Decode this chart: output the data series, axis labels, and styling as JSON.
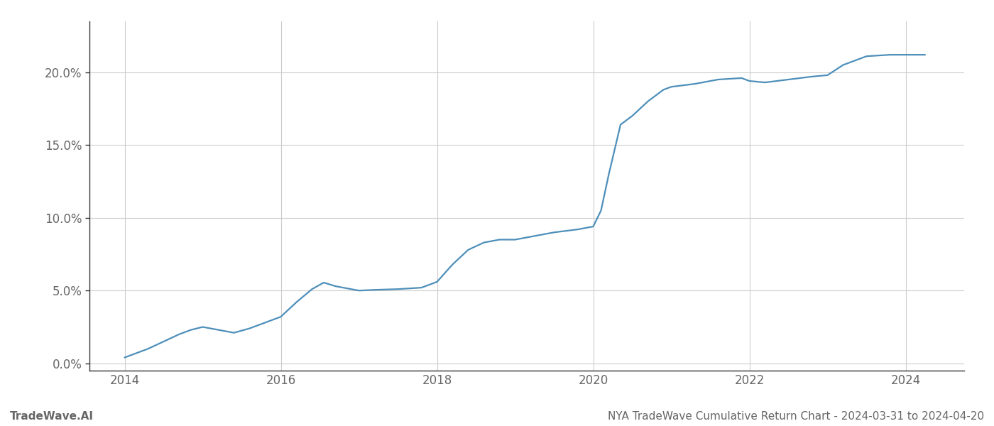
{
  "title": "",
  "footer_left": "TradeWave.AI",
  "footer_right": "NYA TradeWave Cumulative Return Chart - 2024-03-31 to 2024-04-20",
  "line_color": "#4d8fba",
  "background_color": "#ffffff",
  "grid_color": "#cccccc",
  "x_values": [
    2014.0,
    2014.15,
    2014.3,
    2014.5,
    2014.7,
    2014.85,
    2015.0,
    2015.2,
    2015.4,
    2015.6,
    2015.8,
    2016.0,
    2016.2,
    2016.4,
    2016.55,
    2016.7,
    2016.9,
    2017.0,
    2017.2,
    2017.5,
    2017.8,
    2018.0,
    2018.2,
    2018.4,
    2018.6,
    2018.8,
    2019.0,
    2019.2,
    2019.5,
    2019.8,
    2020.0,
    2020.1,
    2020.2,
    2020.35,
    2020.5,
    2020.7,
    2020.9,
    2021.0,
    2021.3,
    2021.6,
    2021.9,
    2022.0,
    2022.2,
    2022.5,
    2022.8,
    2023.0,
    2023.2,
    2023.5,
    2023.8,
    2024.0,
    2024.25
  ],
  "y_values": [
    0.4,
    0.7,
    1.0,
    1.5,
    2.0,
    2.3,
    2.5,
    2.3,
    2.1,
    2.4,
    2.8,
    3.2,
    4.2,
    5.1,
    5.55,
    5.3,
    5.1,
    5.0,
    5.05,
    5.1,
    5.2,
    5.6,
    6.8,
    7.8,
    8.3,
    8.5,
    8.5,
    8.7,
    9.0,
    9.2,
    9.4,
    10.5,
    13.0,
    16.4,
    17.0,
    18.0,
    18.8,
    19.0,
    19.2,
    19.5,
    19.6,
    19.4,
    19.3,
    19.5,
    19.7,
    19.8,
    20.5,
    21.1,
    21.2,
    21.2,
    21.2
  ],
  "ylim": [
    -0.5,
    23.5
  ],
  "yticks": [
    0.0,
    5.0,
    10.0,
    15.0,
    20.0
  ],
  "ytick_labels": [
    "0.0%",
    "5.0%",
    "10.0%",
    "15.0%",
    "20.0%"
  ],
  "xticks": [
    2014,
    2016,
    2018,
    2020,
    2022,
    2024
  ],
  "xlim": [
    2013.55,
    2024.75
  ],
  "line_width": 1.6,
  "footer_fontsize": 11,
  "tick_fontsize": 12,
  "tick_color": "#666666",
  "spine_color": "#333333"
}
